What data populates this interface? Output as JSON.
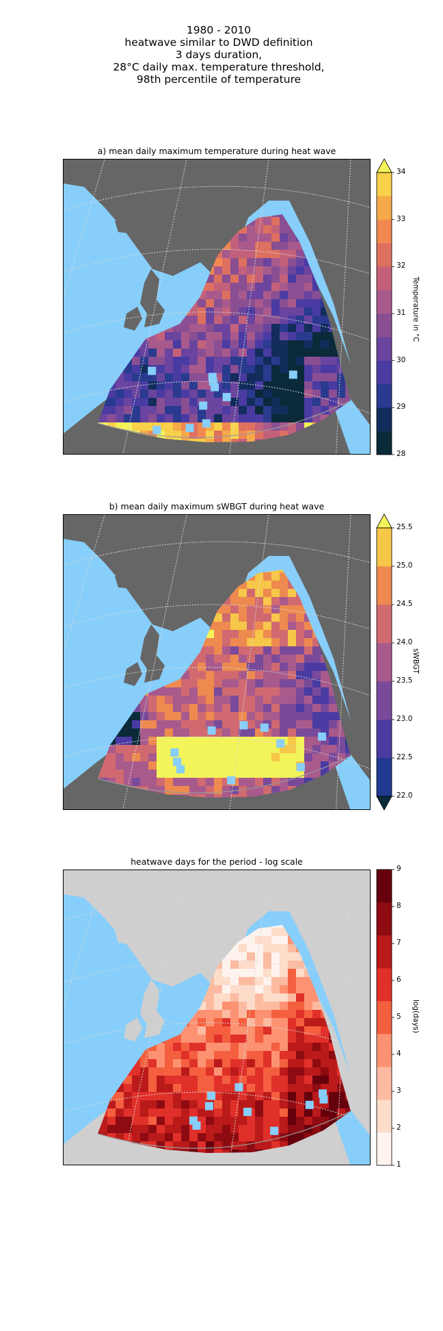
{
  "figure": {
    "title_lines": [
      "1980 - 2010",
      "heatwave similar to DWD definition",
      "3 days duration,",
      "28°C daily max. temperature threshold,",
      "98th percentile of temperature"
    ]
  },
  "panels": [
    {
      "title": "a) mean daily maximum temperature during heat wave",
      "colorbar": {
        "label": "Temperature in °C",
        "ticks": [
          "28",
          "29",
          "30",
          "31",
          "32",
          "33",
          "34"
        ],
        "extend": "max"
      },
      "colors": [
        "#0a2a3a",
        "#122d5c",
        "#2a3a8f",
        "#4a3ba3",
        "#6a449e",
        "#8a4f93",
        "#a85a8c",
        "#c4617a",
        "#de7060",
        "#f08850",
        "#f5a948",
        "#f8d04a",
        "#f3f35a"
      ],
      "land_color": "#666666"
    },
    {
      "title": "b) mean daily maximum sWBGT during heat wave",
      "colorbar": {
        "label": "sWBGT",
        "ticks": [
          "22.0",
          "22.5",
          "23.0",
          "23.5",
          "24.0",
          "24.5",
          "25.0",
          "25.5"
        ],
        "extend": "both"
      },
      "colors": [
        "#0a2a3a",
        "#1f3a8f",
        "#4a3ba3",
        "#7a4a9a",
        "#a85a8c",
        "#d06a70",
        "#ee8a50",
        "#f6c748",
        "#f3f35a"
      ],
      "land_color": "#666666"
    },
    {
      "title": "heatwave days for the period - log scale",
      "colorbar": {
        "label": "log(days)",
        "ticks": [
          "1",
          "2",
          "3",
          "4",
          "5",
          "6",
          "7",
          "8",
          "9"
        ],
        "extend": "neither"
      },
      "colors": [
        "#fff3ee",
        "#fddcc9",
        "#fcbba1",
        "#fc9272",
        "#f4603f",
        "#e0302a",
        "#bb1a1a",
        "#8e0b12",
        "#67000d"
      ],
      "land_color": "#cfcfcf"
    }
  ],
  "map_colors": {
    "ocean": "#87cefa",
    "grid": "#d9d9d9"
  }
}
